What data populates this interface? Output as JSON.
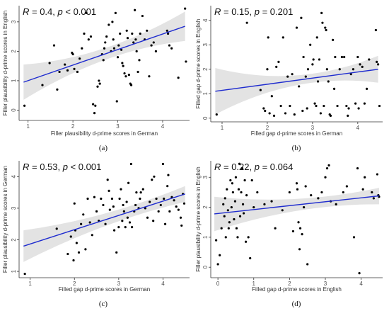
{
  "chart_data": [
    {
      "type": "scatter",
      "stat": {
        "r_symbol": "R",
        "r_text": " = 0.4, ",
        "p_symbol": "p",
        "p_text": " < 0.001"
      },
      "xlabel": "Filler plausibility d-prime scores in German",
      "ylabel": "Filler plausibility d-prime scores in English",
      "caption": "(a)",
      "xlim": [
        0.8,
        4.6
      ],
      "ylim": [
        -0.35,
        3.55
      ],
      "xticks": [
        1,
        2,
        3,
        4
      ],
      "yticks": [
        0,
        1,
        2,
        3
      ],
      "fit": {
        "x": [
          0.9,
          4.5
        ],
        "y": [
          0.95,
          2.85
        ]
      },
      "band": {
        "upper": [
          1.55,
          3.35
        ],
        "lower": [
          0.35,
          2.35
        ]
      },
      "points": [
        [
          0.92,
          0.15
        ],
        [
          1.32,
          0.85
        ],
        [
          1.48,
          1.6
        ],
        [
          1.58,
          2.2
        ],
        [
          1.65,
          0.7
        ],
        [
          1.7,
          1.3
        ],
        [
          1.82,
          1.55
        ],
        [
          1.88,
          1.35
        ],
        [
          1.98,
          1.95
        ],
        [
          2.0,
          1.9
        ],
        [
          2.03,
          1.4
        ],
        [
          2.1,
          1.3
        ],
        [
          2.15,
          1.75
        ],
        [
          2.2,
          2.1
        ],
        [
          2.25,
          2.6
        ],
        [
          2.3,
          3.3
        ],
        [
          2.35,
          2.4
        ],
        [
          2.4,
          2.5
        ],
        [
          2.45,
          0.2
        ],
        [
          2.48,
          -0.1
        ],
        [
          2.5,
          0.15
        ],
        [
          2.55,
          0.8
        ],
        [
          2.58,
          1.0
        ],
        [
          2.6,
          0.9
        ],
        [
          2.65,
          1.9
        ],
        [
          2.68,
          1.7
        ],
        [
          2.7,
          2.1
        ],
        [
          2.72,
          2.3
        ],
        [
          2.75,
          2.5
        ],
        [
          2.8,
          2.9
        ],
        [
          2.85,
          2.0
        ],
        [
          2.88,
          3.0
        ],
        [
          2.9,
          2.4
        ],
        [
          2.92,
          2.1
        ],
        [
          2.95,
          3.3
        ],
        [
          2.98,
          0.3
        ],
        [
          3.0,
          1.8
        ],
        [
          3.02,
          2.2
        ],
        [
          3.05,
          2.6
        ],
        [
          3.08,
          2.05
        ],
        [
          3.1,
          1.6
        ],
        [
          3.12,
          1.5
        ],
        [
          3.15,
          1.25
        ],
        [
          3.18,
          1.15
        ],
        [
          3.2,
          2.7
        ],
        [
          3.22,
          2.45
        ],
        [
          3.25,
          1.2
        ],
        [
          3.28,
          0.9
        ],
        [
          3.3,
          0.85
        ],
        [
          3.32,
          2.6
        ],
        [
          3.35,
          2.3
        ],
        [
          3.38,
          3.4
        ],
        [
          3.4,
          2.4
        ],
        [
          3.42,
          2.0
        ],
        [
          3.45,
          1.3
        ],
        [
          3.48,
          1.7
        ],
        [
          3.5,
          2.6
        ],
        [
          3.55,
          3.2
        ],
        [
          3.6,
          2.4
        ],
        [
          3.65,
          2.7
        ],
        [
          3.7,
          1.15
        ],
        [
          3.75,
          2.2
        ],
        [
          3.8,
          2.3
        ],
        [
          3.85,
          2.0
        ],
        [
          4.1,
          2.7
        ],
        [
          4.12,
          2.6
        ],
        [
          4.15,
          2.2
        ],
        [
          4.2,
          2.1
        ],
        [
          4.35,
          1.1
        ],
        [
          4.5,
          3.45
        ],
        [
          4.52,
          1.65
        ]
      ]
    },
    {
      "type": "scatter",
      "stat": {
        "r_symbol": "R",
        "r_text": " = 0.15, ",
        "p_symbol": "p",
        "p_text": " = 0.201"
      },
      "xlabel": "Filled gap d-prime scores in German",
      "ylabel": "Filled gap d-prime scores in English",
      "caption": "(b)",
      "xlim": [
        0.75,
        4.55
      ],
      "ylim": [
        -0.15,
        4.6
      ],
      "xticks": [
        1,
        2,
        3,
        4
      ],
      "yticks": [
        0,
        1,
        2,
        3,
        4
      ],
      "fit": {
        "x": [
          0.85,
          4.45
        ],
        "y": [
          1.1,
          2.0
        ]
      },
      "band": {
        "upper": [
          2.05,
          2.55
        ],
        "lower": [
          0.15,
          1.45
        ]
      },
      "points": [
        [
          0.88,
          0.15
        ],
        [
          1.55,
          3.9
        ],
        [
          1.85,
          1.15
        ],
        [
          1.92,
          0.4
        ],
        [
          1.95,
          0.3
        ],
        [
          2.0,
          2.0
        ],
        [
          2.02,
          3.3
        ],
        [
          2.05,
          0.2
        ],
        [
          2.1,
          0.9
        ],
        [
          2.15,
          0.1
        ],
        [
          2.2,
          2.1
        ],
        [
          2.25,
          2.3
        ],
        [
          2.3,
          0.5
        ],
        [
          2.35,
          3.3
        ],
        [
          2.4,
          0.2
        ],
        [
          2.45,
          1.7
        ],
        [
          2.5,
          0.5
        ],
        [
          2.55,
          1.8
        ],
        [
          2.6,
          0.15
        ],
        [
          2.65,
          3.7
        ],
        [
          2.7,
          1.3
        ],
        [
          2.75,
          4.1
        ],
        [
          2.78,
          0.3
        ],
        [
          2.8,
          2.5
        ],
        [
          2.85,
          1.7
        ],
        [
          2.88,
          0.4
        ],
        [
          2.9,
          2.0
        ],
        [
          2.95,
          3.0
        ],
        [
          3.0,
          2.2
        ],
        [
          3.02,
          2.4
        ],
        [
          3.05,
          0.6
        ],
        [
          3.08,
          0.5
        ],
        [
          3.1,
          3.3
        ],
        [
          3.12,
          1.5
        ],
        [
          3.15,
          2.4
        ],
        [
          3.18,
          0.2
        ],
        [
          3.2,
          4.3
        ],
        [
          3.22,
          3.9
        ],
        [
          3.25,
          0.5
        ],
        [
          3.28,
          3.7
        ],
        [
          3.3,
          3.6
        ],
        [
          3.32,
          2.0
        ],
        [
          3.35,
          1.5
        ],
        [
          3.38,
          0.15
        ],
        [
          3.4,
          0.1
        ],
        [
          3.45,
          3.2
        ],
        [
          3.48,
          1.2
        ],
        [
          3.5,
          2.5
        ],
        [
          3.55,
          0.5
        ],
        [
          3.6,
          2.0
        ],
        [
          3.65,
          2.5
        ],
        [
          3.7,
          2.5
        ],
        [
          3.75,
          0.5
        ],
        [
          3.78,
          0.1
        ],
        [
          3.8,
          0.4
        ],
        [
          3.85,
          1.8
        ],
        [
          3.9,
          2.0
        ],
        [
          3.95,
          0.6
        ],
        [
          4.0,
          2.5
        ],
        [
          4.02,
          0.4
        ],
        [
          4.05,
          2.2
        ],
        [
          4.1,
          2.1
        ],
        [
          4.15,
          0.6
        ],
        [
          4.2,
          1.2
        ],
        [
          4.25,
          2.4
        ],
        [
          4.4,
          3.6
        ],
        [
          4.42,
          2.3
        ],
        [
          4.45,
          2.2
        ],
        [
          4.48,
          0.5
        ]
      ]
    },
    {
      "type": "scatter",
      "stat": {
        "r_symbol": "R",
        "r_text": " = 0.53, ",
        "p_symbol": "p",
        "p_text": " < 0.001"
      },
      "xlabel": "Filled gap d-prime scores in German",
      "ylabel": "Filler plausibility d-prime scores in German",
      "caption": "(c)",
      "xlim": [
        0.75,
        4.6
      ],
      "ylim": [
        0.8,
        4.5
      ],
      "xticks": [
        1,
        2,
        3,
        4
      ],
      "yticks": [
        1,
        2,
        3,
        4
      ],
      "fit": {
        "x": [
          0.85,
          4.5
        ],
        "y": [
          1.8,
          3.45
        ]
      },
      "band": {
        "upper": [
          2.3,
          3.7
        ],
        "lower": [
          1.3,
          3.2
        ]
      },
      "points": [
        [
          0.88,
          0.92
        ],
        [
          1.6,
          2.35
        ],
        [
          1.85,
          1.55
        ],
        [
          1.92,
          2.1
        ],
        [
          1.98,
          1.35
        ],
        [
          2.0,
          3.15
        ],
        [
          2.02,
          2.3
        ],
        [
          2.05,
          1.9
        ],
        [
          2.1,
          1.6
        ],
        [
          2.15,
          2.5
        ],
        [
          2.2,
          2.8
        ],
        [
          2.25,
          1.7
        ],
        [
          2.3,
          3.3
        ],
        [
          2.35,
          2.55
        ],
        [
          2.4,
          2.15
        ],
        [
          2.45,
          3.35
        ],
        [
          2.5,
          2.9
        ],
        [
          2.55,
          2.6
        ],
        [
          2.6,
          3.3
        ],
        [
          2.65,
          3.1
        ],
        [
          2.7,
          2.5
        ],
        [
          2.75,
          3.9
        ],
        [
          2.78,
          3.55
        ],
        [
          2.8,
          2.95
        ],
        [
          2.85,
          3.3
        ],
        [
          2.88,
          3.05
        ],
        [
          2.9,
          2.3
        ],
        [
          2.95,
          1.6
        ],
        [
          3.0,
          2.4
        ],
        [
          3.02,
          3.3
        ],
        [
          3.05,
          3.6
        ],
        [
          3.08,
          2.6
        ],
        [
          3.1,
          3.1
        ],
        [
          3.12,
          2.9
        ],
        [
          3.15,
          2.4
        ],
        [
          3.18,
          3.2
        ],
        [
          3.2,
          2.7
        ],
        [
          3.22,
          3.8
        ],
        [
          3.25,
          2.55
        ],
        [
          3.28,
          4.4
        ],
        [
          3.3,
          2.4
        ],
        [
          3.35,
          2.9
        ],
        [
          3.38,
          3.1
        ],
        [
          3.4,
          3.5
        ],
        [
          3.45,
          3.0
        ],
        [
          3.48,
          3.3
        ],
        [
          3.5,
          3.5
        ],
        [
          3.55,
          3.6
        ],
        [
          3.6,
          3.0
        ],
        [
          3.65,
          2.7
        ],
        [
          3.7,
          3.2
        ],
        [
          3.75,
          3.9
        ],
        [
          3.78,
          2.6
        ],
        [
          3.8,
          4.0
        ],
        [
          3.85,
          3.3
        ],
        [
          3.9,
          2.9
        ],
        [
          3.95,
          3.1
        ],
        [
          4.0,
          4.4
        ],
        [
          4.02,
          3.3
        ],
        [
          4.05,
          2.5
        ],
        [
          4.1,
          3.7
        ],
        [
          4.12,
          4.05
        ],
        [
          4.15,
          2.9
        ],
        [
          4.2,
          3.35
        ],
        [
          4.25,
          3.25
        ],
        [
          4.3,
          3.05
        ],
        [
          4.35,
          2.95
        ],
        [
          4.4,
          2.7
        ],
        [
          4.42,
          2.45
        ],
        [
          4.45,
          3.45
        ],
        [
          4.48,
          3.15
        ]
      ]
    },
    {
      "type": "scatter",
      "stat": {
        "r_symbol": "R",
        "r_text": " = 0.22, ",
        "p_symbol": "p",
        "p_text": " = 0.064"
      },
      "xlabel": "Filled gap d-prime scores in English",
      "ylabel": "Filler plausibility d-prime scores in English",
      "caption": "(d)",
      "xlim": [
        -0.2,
        4.6
      ],
      "ylim": [
        -0.35,
        3.55
      ],
      "xticks": [
        0,
        1,
        2,
        3,
        4
      ],
      "yticks": [
        0,
        1,
        2,
        3
      ],
      "fit": {
        "x": [
          -0.1,
          4.5
        ],
        "y": [
          1.78,
          2.38
        ]
      },
      "band": {
        "upper": [
          2.35,
          2.65
        ],
        "lower": [
          1.2,
          2.1
        ]
      },
      "points": [
        [
          -0.05,
          0.9
        ],
        [
          0.0,
          0.1
        ],
        [
          0.05,
          0.4
        ],
        [
          0.1,
          1.3
        ],
        [
          0.15,
          2.1
        ],
        [
          0.18,
          1.7
        ],
        [
          0.2,
          2.3
        ],
        [
          0.22,
          1.0
        ],
        [
          0.25,
          2.6
        ],
        [
          0.28,
          1.9
        ],
        [
          0.3,
          1.3
        ],
        [
          0.32,
          1.5
        ],
        [
          0.35,
          2.9
        ],
        [
          0.38,
          2.0
        ],
        [
          0.4,
          2.8
        ],
        [
          0.42,
          2.5
        ],
        [
          0.45,
          1.6
        ],
        [
          0.48,
          2.2
        ],
        [
          0.5,
          3.0
        ],
        [
          0.52,
          1.3
        ],
        [
          0.55,
          1.0
        ],
        [
          0.58,
          2.6
        ],
        [
          0.6,
          3.45
        ],
        [
          0.62,
          1.7
        ],
        [
          0.65,
          2.5
        ],
        [
          0.68,
          3.3
        ],
        [
          0.7,
          2.1
        ],
        [
          0.72,
          1.8
        ],
        [
          0.75,
          2.9
        ],
        [
          0.78,
          0.85
        ],
        [
          0.8,
          2.4
        ],
        [
          0.85,
          1.0
        ],
        [
          0.9,
          0.3
        ],
        [
          0.95,
          2.9
        ],
        [
          1.0,
          2.0
        ],
        [
          1.1,
          2.5
        ],
        [
          1.3,
          2.1
        ],
        [
          1.5,
          2.2
        ],
        [
          1.6,
          1.3
        ],
        [
          1.8,
          1.9
        ],
        [
          2.0,
          2.5
        ],
        [
          2.1,
          1.2
        ],
        [
          2.2,
          2.8
        ],
        [
          2.22,
          2.6
        ],
        [
          2.25,
          1.5
        ],
        [
          2.28,
          0.6
        ],
        [
          2.3,
          1.3
        ],
        [
          2.35,
          1.1
        ],
        [
          2.4,
          2.0
        ],
        [
          2.45,
          2.7
        ],
        [
          2.5,
          0.1
        ],
        [
          2.6,
          2.4
        ],
        [
          2.8,
          2.3
        ],
        [
          2.9,
          2.5
        ],
        [
          3.0,
          3.0
        ],
        [
          3.05,
          3.3
        ],
        [
          3.1,
          3.4
        ],
        [
          3.15,
          2.2
        ],
        [
          3.3,
          2.1
        ],
        [
          3.5,
          2.5
        ],
        [
          3.6,
          2.7
        ],
        [
          3.8,
          1.0
        ],
        [
          3.9,
          3.3
        ],
        [
          3.95,
          -0.2
        ],
        [
          4.05,
          2.6
        ],
        [
          4.1,
          3.0
        ],
        [
          4.3,
          2.5
        ],
        [
          4.35,
          2.3
        ],
        [
          4.45,
          3.1
        ],
        [
          4.48,
          2.4
        ],
        [
          4.5,
          2.35
        ]
      ]
    }
  ]
}
